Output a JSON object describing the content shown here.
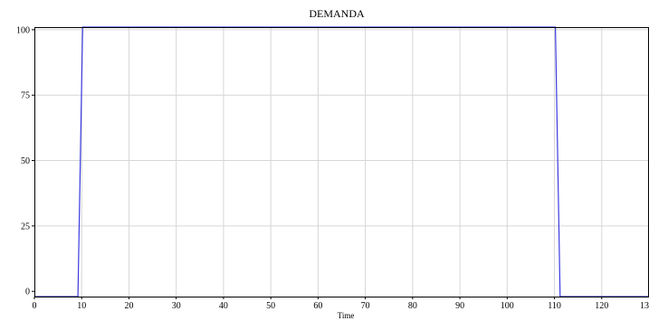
{
  "chart_data": {
    "type": "line",
    "title": "DEMANDA",
    "xlabel": "Time",
    "ylabel": "",
    "xlim": [
      0,
      130
    ],
    "ylim": [
      -2,
      101
    ],
    "xticks": [
      0,
      10,
      20,
      30,
      40,
      50,
      60,
      70,
      80,
      90,
      100,
      110,
      120
    ],
    "xtick_labels": [
      "0",
      "10",
      "20",
      "30",
      "40",
      "50",
      "60",
      "70",
      "80",
      "90",
      "100",
      "110",
      "120"
    ],
    "xtick_label_clipped": "13",
    "yticks": [
      0,
      25,
      50,
      75,
      100
    ],
    "ytick_labels": [
      "0",
      "25",
      "50",
      "75",
      "100"
    ],
    "grid": true,
    "series": [
      {
        "color": "#3a3ae0",
        "x": [
          0,
          9.2,
          10.2,
          110.2,
          111.2,
          130
        ],
        "y": [
          -2,
          -2,
          101,
          101,
          -2,
          -2
        ]
      }
    ]
  }
}
